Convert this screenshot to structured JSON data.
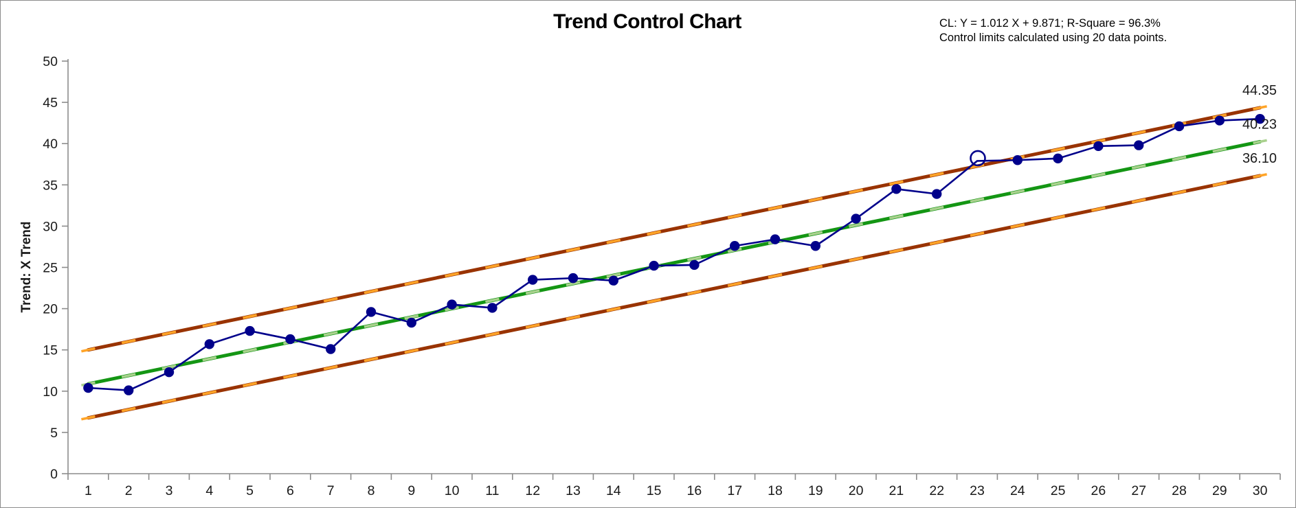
{
  "window": {
    "background": "#ffffff",
    "border_color": "#8c8c8c"
  },
  "chart_data": {
    "type": "line",
    "title": "Trend Control Chart",
    "annotation": [
      "CL: Y = 1.012 X + 9.871; R-Square = 96.3%",
      "Control limits calculated using 20 data points."
    ],
    "ylabel": "Trend: X Trend",
    "xlabel": "",
    "ylim": [
      0,
      50
    ],
    "yticks": [
      0,
      5,
      10,
      15,
      20,
      25,
      30,
      35,
      40,
      45,
      50
    ],
    "x": [
      1,
      2,
      3,
      4,
      5,
      6,
      7,
      8,
      9,
      10,
      11,
      12,
      13,
      14,
      15,
      16,
      17,
      18,
      19,
      20,
      21,
      22,
      23,
      24,
      25,
      26,
      27,
      28,
      29,
      30
    ],
    "grid": false,
    "legend": "none",
    "axis_color": "#8c8c8c",
    "tick_label_color": "#1a1a1a",
    "data_series": {
      "name": "X Trend",
      "color": "#00008B",
      "values": [
        10.4,
        10.1,
        12.3,
        15.7,
        17.3,
        16.3,
        15.1,
        19.6,
        18.3,
        20.5,
        20.1,
        23.5,
        23.7,
        23.4,
        25.2,
        25.3,
        27.6,
        28.4,
        27.6,
        30.9,
        34.5,
        33.9,
        37.9,
        38.0,
        38.2,
        39.7,
        39.8,
        42.1,
        42.8,
        43.0
      ],
      "out_of_control_x": [
        23
      ]
    },
    "center_line": {
      "name": "CL",
      "slope": 1.012,
      "intercept": 9.871,
      "start_value": 10.88,
      "end_value": 40.23,
      "color": "#149614",
      "dash_color": "#a9d18e",
      "end_label": "40.23"
    },
    "control_limits": {
      "offset": 4.12,
      "ucl_start_value": 15.0,
      "ucl_end_value": 44.35,
      "lcl_start_value": 6.76,
      "lcl_end_value": 36.1,
      "color": "#993300",
      "dash_color": "#ffa428",
      "ucl_end_label": "44.35",
      "lcl_end_label": "36.10"
    },
    "end_label_color": "#1a1a1a"
  }
}
